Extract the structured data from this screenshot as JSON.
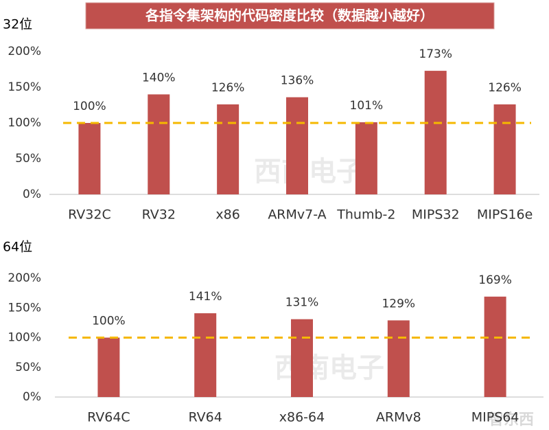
{
  "title": "各指令集架构的代码密度比较（数据越小越好）",
  "watermarks": [
    "西南电子",
    "西南电子",
    "智东西"
  ],
  "chart_data": [
    {
      "type": "bar",
      "title": "32位",
      "categories": [
        "RV32C",
        "RV32",
        "x86",
        "ARMv7-A",
        "Thumb-2",
        "MIPS32",
        "MIPS16e"
      ],
      "values": [
        100,
        140,
        126,
        136,
        101,
        173,
        126
      ],
      "value_labels": [
        "100%",
        "140%",
        "126%",
        "136%",
        "101%",
        "173%",
        "126%"
      ],
      "color": "#c0504d",
      "ylim": [
        0,
        200
      ],
      "yticks": [
        {
          "value": 0,
          "label": "0%"
        },
        {
          "value": 50,
          "label": "50%"
        },
        {
          "value": 100,
          "label": "100%"
        },
        {
          "value": 150,
          "label": "150%"
        },
        {
          "value": 200,
          "label": "200%"
        }
      ],
      "reference_line": {
        "value": 100,
        "color": "#f5b800"
      }
    },
    {
      "type": "bar",
      "title": "64位",
      "categories": [
        "RV64C",
        "RV64",
        "x86-64",
        "ARMv8",
        "MIPS64"
      ],
      "values": [
        100,
        141,
        131,
        129,
        169
      ],
      "value_labels": [
        "100%",
        "141%",
        "131%",
        "129%",
        "169%"
      ],
      "color": "#c0504d",
      "ylim": [
        0,
        200
      ],
      "yticks": [
        {
          "value": 0,
          "label": "0%"
        },
        {
          "value": 50,
          "label": "50%"
        },
        {
          "value": 100,
          "label": "100%"
        },
        {
          "value": 150,
          "label": "150%"
        },
        {
          "value": 200,
          "label": "200%"
        }
      ],
      "reference_line": {
        "value": 100,
        "color": "#f5b800"
      }
    }
  ]
}
